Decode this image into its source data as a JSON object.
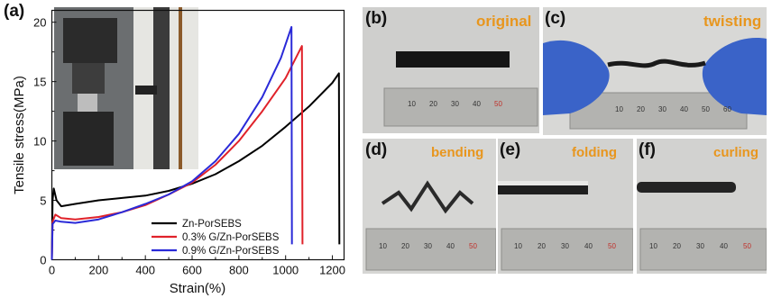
{
  "panels": {
    "a": "(a)",
    "b": "(b)",
    "c": "(c)",
    "d": "(d)",
    "e": "(e)",
    "f": "(f)"
  },
  "photos": {
    "b": {
      "caption": "original"
    },
    "c": {
      "caption": "twisting"
    },
    "d": {
      "caption": "bending"
    },
    "e": {
      "caption": "folding"
    },
    "f": {
      "caption": "curling"
    }
  },
  "ruler_numbers": {
    "b": [
      "10",
      "20",
      "30",
      "40",
      "50"
    ],
    "c": [
      "10",
      "20",
      "30",
      "40",
      "50",
      "60"
    ],
    "d": [
      "10",
      "20",
      "30",
      "40",
      "50"
    ],
    "e": [
      "10",
      "20",
      "30",
      "40",
      "50"
    ],
    "f": [
      "10",
      "20",
      "30",
      "40",
      "50"
    ]
  },
  "colors": {
    "black_series": "#000000",
    "red_series": "#e0222a",
    "blue_series": "#2a2ad8",
    "caption": "#e8961e",
    "glove": "#3a63c8"
  },
  "chart_data": {
    "type": "line",
    "xlabel": "Strain(%)",
    "ylabel": "Tensile stress(MPa)",
    "xlim": [
      0,
      1250
    ],
    "ylim": [
      0,
      21
    ],
    "xticks": [
      "0",
      "200",
      "400",
      "600",
      "800",
      "1000",
      "1200"
    ],
    "yticks": [
      "0",
      "5",
      "10",
      "15",
      "20"
    ],
    "legend_position": "lower-center",
    "series": [
      {
        "name": "Zn-PorSEBS",
        "color": "#000000",
        "points": [
          [
            0,
            0
          ],
          [
            3,
            5
          ],
          [
            8,
            6
          ],
          [
            20,
            5
          ],
          [
            40,
            4.5
          ],
          [
            100,
            4.7
          ],
          [
            200,
            5.0
          ],
          [
            300,
            5.2
          ],
          [
            400,
            5.4
          ],
          [
            500,
            5.8
          ],
          [
            600,
            6.4
          ],
          [
            700,
            7.2
          ],
          [
            800,
            8.3
          ],
          [
            900,
            9.6
          ],
          [
            1000,
            11.2
          ],
          [
            1100,
            12.9
          ],
          [
            1200,
            14.9
          ],
          [
            1228,
            15.7
          ],
          [
            1230,
            1.3
          ]
        ]
      },
      {
        "name": "0.3% G/Zn-PorSEBS",
        "color": "#e0222a",
        "points": [
          [
            0,
            0
          ],
          [
            3,
            3.2
          ],
          [
            15,
            3.8
          ],
          [
            40,
            3.5
          ],
          [
            100,
            3.4
          ],
          [
            200,
            3.6
          ],
          [
            300,
            4.0
          ],
          [
            400,
            4.6
          ],
          [
            500,
            5.5
          ],
          [
            600,
            6.5
          ],
          [
            700,
            8.0
          ],
          [
            800,
            10.0
          ],
          [
            900,
            12.5
          ],
          [
            1000,
            15.3
          ],
          [
            1070,
            18.0
          ],
          [
            1072,
            1.3
          ]
        ]
      },
      {
        "name": "0.9% G/Zn-PorSEBS",
        "color": "#2a2ad8",
        "points": [
          [
            0,
            0
          ],
          [
            3,
            3.0
          ],
          [
            15,
            3.3
          ],
          [
            40,
            3.2
          ],
          [
            100,
            3.1
          ],
          [
            200,
            3.4
          ],
          [
            300,
            4.0
          ],
          [
            400,
            4.7
          ],
          [
            500,
            5.5
          ],
          [
            600,
            6.6
          ],
          [
            700,
            8.3
          ],
          [
            800,
            10.6
          ],
          [
            900,
            13.7
          ],
          [
            980,
            17.0
          ],
          [
            1025,
            19.6
          ],
          [
            1027,
            1.3
          ]
        ]
      }
    ]
  }
}
